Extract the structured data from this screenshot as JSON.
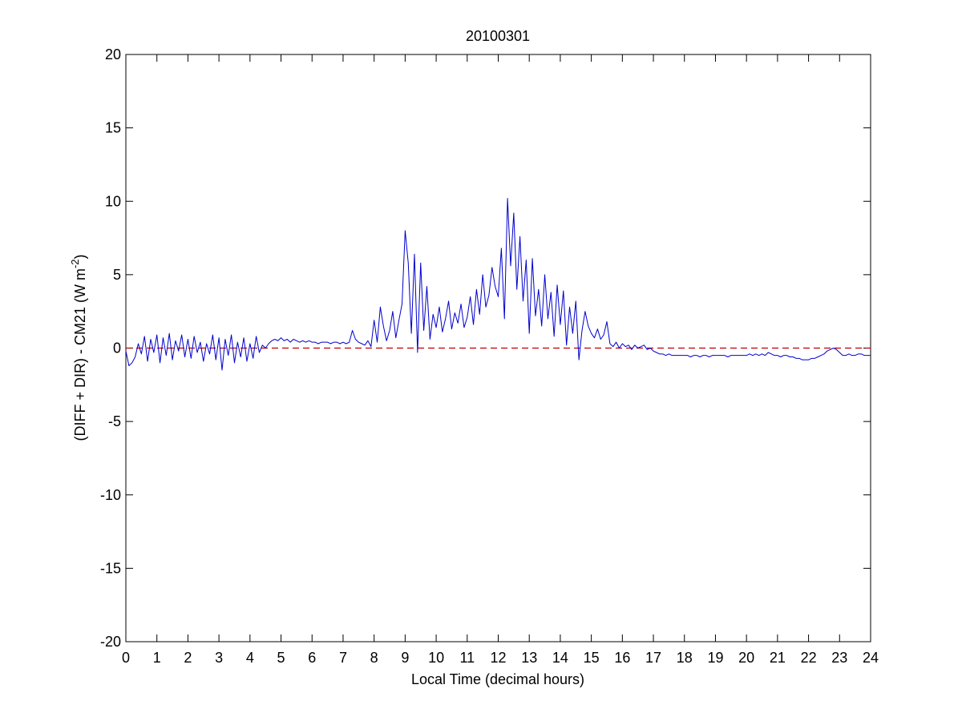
{
  "chart_data": {
    "type": "line",
    "title": "20100301",
    "xlabel": "Local Time (decimal hours)",
    "ylabel": [
      "(DIFF + DIR) - CM21 (W m",
      "-2",
      ")"
    ],
    "xlim": [
      0,
      24
    ],
    "ylim": [
      -20,
      20
    ],
    "xticks": [
      0,
      1,
      2,
      3,
      4,
      5,
      6,
      7,
      8,
      9,
      10,
      11,
      12,
      13,
      14,
      15,
      16,
      17,
      18,
      19,
      20,
      21,
      22,
      23,
      24
    ],
    "yticks": [
      -20,
      -15,
      -10,
      -5,
      0,
      5,
      10,
      15,
      20
    ],
    "reference_line": {
      "value": 0,
      "color": "#c00000",
      "style": "dashed"
    },
    "x": [
      0,
      0.1,
      0.2,
      0.3,
      0.4,
      0.5,
      0.6,
      0.7,
      0.8,
      0.9,
      1,
      1.1,
      1.2,
      1.3,
      1.4,
      1.5,
      1.6,
      1.7,
      1.8,
      1.9,
      2,
      2.1,
      2.2,
      2.3,
      2.4,
      2.5,
      2.6,
      2.7,
      2.8,
      2.9,
      3,
      3.1,
      3.2,
      3.3,
      3.4,
      3.5,
      3.6,
      3.7,
      3.8,
      3.9,
      4,
      4.1,
      4.2,
      4.3,
      4.4,
      4.5,
      4.6,
      4.7,
      4.8,
      4.9,
      5,
      5.1,
      5.2,
      5.3,
      5.4,
      5.5,
      5.6,
      5.7,
      5.8,
      5.9,
      6,
      6.1,
      6.2,
      6.3,
      6.4,
      6.5,
      6.6,
      6.7,
      6.8,
      6.9,
      7,
      7.1,
      7.2,
      7.3,
      7.4,
      7.5,
      7.6,
      7.7,
      7.8,
      7.9,
      8,
      8.1,
      8.2,
      8.3,
      8.4,
      8.5,
      8.6,
      8.7,
      8.8,
      8.9,
      9,
      9.1,
      9.2,
      9.3,
      9.4,
      9.5,
      9.6,
      9.7,
      9.8,
      9.9,
      10,
      10.1,
      10.2,
      10.3,
      10.4,
      10.5,
      10.6,
      10.7,
      10.8,
      10.9,
      11,
      11.1,
      11.2,
      11.3,
      11.4,
      11.5,
      11.6,
      11.7,
      11.8,
      11.9,
      12,
      12.1,
      12.2,
      12.3,
      12.4,
      12.5,
      12.6,
      12.7,
      12.8,
      12.9,
      13,
      13.1,
      13.2,
      13.3,
      13.4,
      13.5,
      13.6,
      13.7,
      13.8,
      13.9,
      14,
      14.1,
      14.2,
      14.3,
      14.4,
      14.5,
      14.6,
      14.7,
      14.8,
      14.9,
      15,
      15.1,
      15.2,
      15.3,
      15.4,
      15.5,
      15.6,
      15.7,
      15.8,
      15.9,
      16,
      16.1,
      16.2,
      16.3,
      16.4,
      16.5,
      16.6,
      16.7,
      16.8,
      16.9,
      17,
      17.1,
      17.2,
      17.3,
      17.4,
      17.5,
      17.6,
      17.7,
      17.8,
      17.9,
      18,
      18.1,
      18.2,
      18.3,
      18.4,
      18.5,
      18.6,
      18.7,
      18.8,
      18.9,
      19,
      19.1,
      19.2,
      19.3,
      19.4,
      19.5,
      19.6,
      19.7,
      19.8,
      19.9,
      20,
      20.1,
      20.2,
      20.3,
      20.4,
      20.5,
      20.6,
      20.7,
      20.8,
      20.9,
      21,
      21.1,
      21.2,
      21.3,
      21.4,
      21.5,
      21.6,
      21.7,
      21.8,
      21.9,
      22,
      22.1,
      22.2,
      22.3,
      22.4,
      22.5,
      22.6,
      22.7,
      22.8,
      22.9,
      23,
      23.1,
      23.2,
      23.3,
      23.4,
      23.5,
      23.6,
      23.7,
      23.8,
      23.9,
      24
    ],
    "series": [
      {
        "color": "#0000cc",
        "values": [
          -0.2,
          -1.2,
          -1.0,
          -0.6,
          0.3,
          -0.4,
          0.8,
          -0.9,
          0.6,
          -0.3,
          0.9,
          -1.0,
          0.7,
          -0.5,
          1.0,
          -0.8,
          0.5,
          -0.2,
          0.9,
          -0.6,
          0.6,
          -0.7,
          0.8,
          -0.3,
          0.4,
          -0.9,
          0.3,
          -0.4,
          0.9,
          -0.8,
          0.7,
          -1.5,
          0.6,
          -0.5,
          0.9,
          -1.0,
          0.4,
          -0.6,
          0.7,
          -0.9,
          0.3,
          -0.7,
          0.8,
          -0.3,
          0.2,
          0.0,
          0.3,
          0.5,
          0.6,
          0.5,
          0.7,
          0.5,
          0.6,
          0.4,
          0.6,
          0.5,
          0.4,
          0.5,
          0.4,
          0.5,
          0.4,
          0.4,
          0.3,
          0.4,
          0.4,
          0.4,
          0.3,
          0.4,
          0.4,
          0.3,
          0.4,
          0.3,
          0.4,
          1.2,
          0.6,
          0.4,
          0.3,
          0.2,
          0.5,
          0.1,
          1.9,
          0.4,
          2.8,
          1.5,
          0.5,
          1.2,
          2.5,
          0.7,
          1.9,
          3.0,
          8.0,
          5.8,
          1.0,
          6.4,
          -0.3,
          5.8,
          1.2,
          4.2,
          0.6,
          2.3,
          1.4,
          2.8,
          1.1,
          2.0,
          3.2,
          1.3,
          2.4,
          1.7,
          3.0,
          1.4,
          2.1,
          3.5,
          1.6,
          4.0,
          2.3,
          5.0,
          2.8,
          3.6,
          5.5,
          4.2,
          3.5,
          6.8,
          2.0,
          10.2,
          5.6,
          9.2,
          4.0,
          7.6,
          3.2,
          6.0,
          1.0,
          6.1,
          2.2,
          4.0,
          1.5,
          5.0,
          2.0,
          3.8,
          0.8,
          4.3,
          1.6,
          3.9,
          0.2,
          2.8,
          1.0,
          3.2,
          -0.8,
          1.2,
          2.5,
          1.5,
          1.0,
          0.7,
          1.3,
          0.6,
          0.9,
          1.8,
          0.3,
          0.1,
          0.4,
          0.0,
          0.3,
          0.1,
          0.2,
          -0.1,
          0.2,
          0.0,
          0.1,
          0.2,
          -0.1,
          0.0,
          -0.2,
          -0.3,
          -0.4,
          -0.4,
          -0.5,
          -0.4,
          -0.5,
          -0.5,
          -0.5,
          -0.5,
          -0.5,
          -0.5,
          -0.6,
          -0.5,
          -0.5,
          -0.6,
          -0.5,
          -0.5,
          -0.6,
          -0.5,
          -0.5,
          -0.5,
          -0.5,
          -0.5,
          -0.6,
          -0.5,
          -0.5,
          -0.5,
          -0.5,
          -0.5,
          -0.5,
          -0.4,
          -0.5,
          -0.4,
          -0.5,
          -0.4,
          -0.5,
          -0.3,
          -0.4,
          -0.5,
          -0.5,
          -0.6,
          -0.5,
          -0.5,
          -0.6,
          -0.6,
          -0.7,
          -0.7,
          -0.8,
          -0.8,
          -0.8,
          -0.7,
          -0.7,
          -0.6,
          -0.5,
          -0.4,
          -0.2,
          -0.1,
          0.0,
          -0.1,
          -0.3,
          -0.5,
          -0.5,
          -0.4,
          -0.5,
          -0.5,
          -0.4,
          -0.4,
          -0.5,
          -0.5,
          -0.5
        ]
      }
    ]
  }
}
